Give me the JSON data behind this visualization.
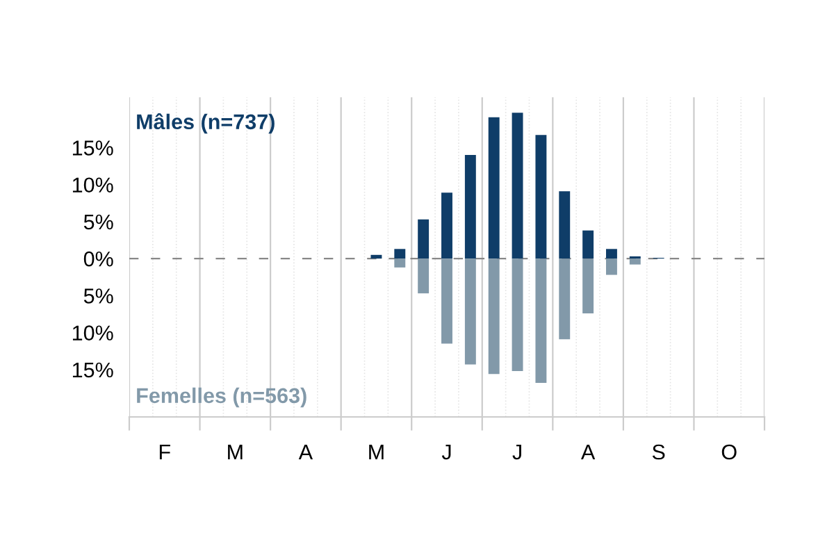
{
  "chart_data": {
    "type": "bar",
    "categories": [
      null,
      "F",
      null,
      null,
      "M",
      null,
      null,
      "A",
      null,
      null,
      "M",
      null,
      null,
      "J",
      null,
      null,
      "J",
      null,
      null,
      "A",
      null,
      null,
      "S",
      null,
      null,
      "O",
      null
    ],
    "series": [
      {
        "name": "Mâles (n=737)",
        "color": "#0f3d68",
        "values": [
          0,
          0,
          0,
          0,
          0,
          0,
          0,
          0,
          0,
          0,
          0.5,
          1.3,
          5.3,
          8.9,
          14.0,
          19.1,
          19.7,
          16.7,
          9.1,
          3.8,
          1.3,
          0.3,
          0.1,
          0,
          0,
          0,
          0
        ]
      },
      {
        "name": "Femelles (n=563)",
        "color": "#8299a9",
        "values": [
          0,
          0,
          0,
          0,
          0,
          0,
          0,
          0,
          0,
          0,
          0,
          -1.2,
          -4.7,
          -11.5,
          -14.3,
          -15.6,
          -15.2,
          -16.8,
          -10.9,
          -7.4,
          -2.2,
          -0.8,
          0,
          0,
          0,
          0,
          0
        ]
      }
    ],
    "ylim": [
      -21.4,
      21.8
    ],
    "yticks": [
      {
        "value": -15,
        "label": "15%"
      },
      {
        "value": -10,
        "label": "10%"
      },
      {
        "value": -5,
        "label": "5%"
      },
      {
        "value": 0,
        "label": "0%"
      },
      {
        "value": 5,
        "label": "5%"
      },
      {
        "value": 10,
        "label": "10%"
      },
      {
        "value": 15,
        "label": "15%"
      }
    ],
    "ref_lines": [
      {
        "axis": "y",
        "value": 0,
        "color": "#888888",
        "line_style": "dashed"
      }
    ],
    "grid": "x",
    "legend": false
  }
}
